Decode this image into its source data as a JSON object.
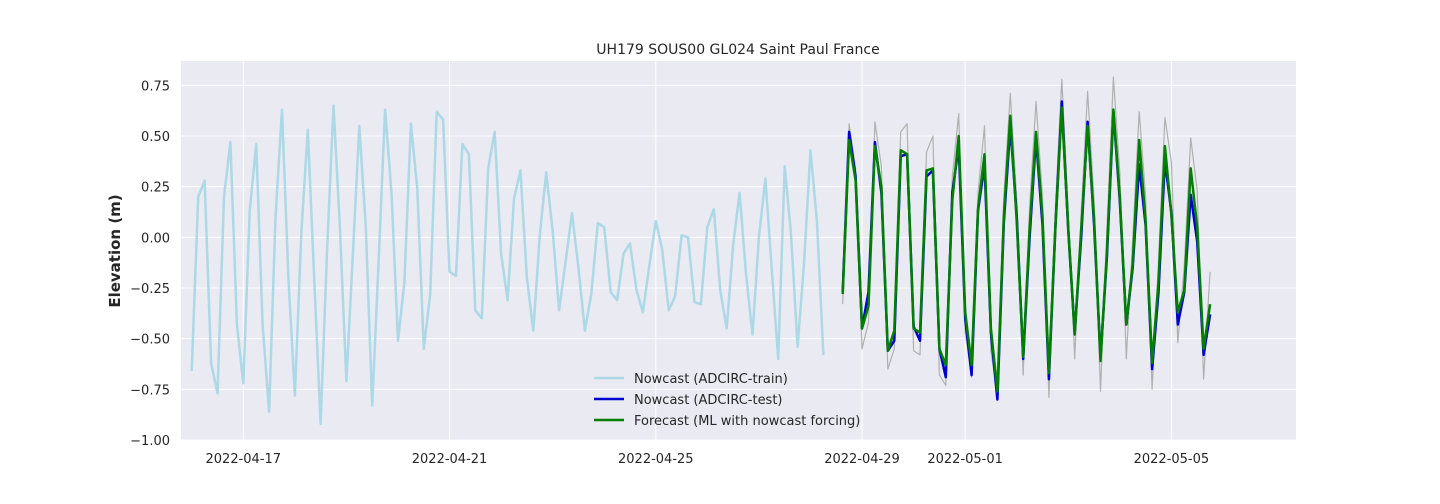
{
  "chart_data": {
    "type": "line",
    "title": "UH179 SOUS00 GL024 Saint Paul France",
    "xlabel": "",
    "ylabel": "Elevation (m)",
    "ylim": [
      -1.0,
      0.87
    ],
    "xlim": [
      "2022-04-15 19:00",
      "2022-05-07 10:00"
    ],
    "grid": true,
    "background": "#eaeaf2",
    "legend_position": "lower-center",
    "x_tick_labels": [
      "2022-04-17",
      "2022-04-21",
      "2022-04-25",
      "2022-04-29",
      "2022-05-01",
      "2022-05-05"
    ],
    "y_tick_labels": [
      "−1.00",
      "−0.75",
      "−0.50",
      "−0.25",
      "0.00",
      "0.25",
      "0.50",
      "0.75"
    ],
    "y_tick_values": [
      -1.0,
      -0.75,
      -0.5,
      -0.25,
      0.0,
      0.25,
      0.5,
      0.75
    ],
    "series": [
      {
        "name": "Nowcast (ADCIRC-train)",
        "color": "#add8e6",
        "start": "2022-04-16 00:00",
        "step_hours": 3,
        "values": [
          -0.66,
          0.2,
          0.28,
          -0.62,
          -0.77,
          0.2,
          0.47,
          -0.43,
          -0.72,
          0.13,
          0.46,
          -0.43,
          -0.86,
          0.1,
          0.63,
          -0.2,
          -0.78,
          0.02,
          0.53,
          -0.2,
          -0.92,
          -0.06,
          0.65,
          0.04,
          -0.71,
          -0.08,
          0.55,
          0.05,
          -0.83,
          -0.12,
          0.63,
          0.22,
          -0.51,
          -0.22,
          0.56,
          0.24,
          -0.55,
          -0.28,
          0.62,
          0.58,
          -0.17,
          -0.19,
          0.46,
          0.41,
          -0.36,
          -0.4,
          0.34,
          0.52,
          -0.08,
          -0.31,
          0.19,
          0.33,
          -0.2,
          -0.46,
          0.01,
          0.32,
          0.03,
          -0.36,
          -0.12,
          0.12,
          -0.15,
          -0.46,
          -0.28,
          0.07,
          0.05,
          -0.27,
          -0.31,
          -0.08,
          -0.03,
          -0.26,
          -0.37,
          -0.14,
          0.08,
          -0.06,
          -0.36,
          -0.29,
          0.01,
          0.0,
          -0.32,
          -0.33,
          0.05,
          0.14,
          -0.26,
          -0.45,
          -0.04,
          0.22,
          -0.18,
          -0.48,
          0.0,
          0.29,
          -0.16,
          -0.6,
          0.35,
          0.01,
          -0.54,
          -0.13,
          0.43,
          0.08,
          -0.58
        ]
      },
      {
        "name": "Nowcast (ADCIRC-test)",
        "color": "#0000cd",
        "start": "2022-04-28 15:00",
        "step_hours": 3,
        "values": [
          -0.27,
          0.52,
          0.3,
          -0.45,
          -0.27,
          0.47,
          0.22,
          -0.56,
          -0.51,
          0.4,
          0.41,
          -0.44,
          -0.51,
          0.3,
          0.33,
          -0.55,
          -0.69,
          0.22,
          0.45,
          -0.4,
          -0.68,
          0.13,
          0.36,
          -0.47,
          -0.8,
          0.07,
          0.55,
          0.11,
          -0.6,
          0.0,
          0.49,
          0.06,
          -0.7,
          0.05,
          0.67,
          0.03,
          -0.47,
          0.0,
          0.57,
          0.06,
          -0.59,
          -0.1,
          0.62,
          0.18,
          -0.43,
          -0.15,
          0.36,
          0.06,
          -0.65,
          -0.27,
          0.38,
          0.12,
          -0.43,
          -0.27,
          0.21,
          -0.02,
          -0.58,
          -0.38
        ]
      },
      {
        "name": "Forecast (ML with nowcast forcing)",
        "color": "#008000",
        "start": "2022-04-28 15:00",
        "step_hours": 3,
        "values": [
          -0.28,
          0.48,
          0.28,
          -0.45,
          -0.34,
          0.45,
          0.25,
          -0.56,
          -0.46,
          0.43,
          0.41,
          -0.45,
          -0.47,
          0.33,
          0.34,
          -0.55,
          -0.63,
          0.18,
          0.5,
          -0.37,
          -0.63,
          0.14,
          0.41,
          -0.45,
          -0.76,
          0.1,
          0.6,
          0.08,
          -0.59,
          0.04,
          0.52,
          0.1,
          -0.67,
          0.05,
          0.64,
          0.04,
          -0.48,
          0.04,
          0.55,
          0.09,
          -0.61,
          -0.07,
          0.63,
          0.2,
          -0.43,
          -0.13,
          0.48,
          0.08,
          -0.62,
          -0.22,
          0.45,
          0.11,
          -0.37,
          -0.26,
          0.34,
          0.05,
          -0.55,
          -0.33
        ]
      },
      {
        "name": "",
        "color": "#b0b0b0",
        "start": "2022-04-28 15:00",
        "step_hours": 3,
        "values": [
          -0.33,
          0.56,
          0.34,
          -0.55,
          -0.42,
          0.57,
          0.35,
          -0.65,
          -0.55,
          0.52,
          0.56,
          -0.56,
          -0.58,
          0.42,
          0.5,
          -0.68,
          -0.73,
          0.3,
          0.61,
          -0.47,
          -0.69,
          0.22,
          0.55,
          -0.56,
          -0.78,
          0.2,
          0.71,
          0.19,
          -0.68,
          0.15,
          0.67,
          0.2,
          -0.79,
          0.15,
          0.78,
          0.13,
          -0.6,
          0.12,
          0.72,
          0.18,
          -0.76,
          0.04,
          0.79,
          0.32,
          -0.6,
          -0.01,
          0.62,
          0.2,
          -0.75,
          -0.12,
          0.59,
          0.37,
          -0.52,
          -0.14,
          0.49,
          0.23,
          -0.7,
          -0.17
        ]
      }
    ],
    "legend": [
      {
        "label": "Nowcast (ADCIRC-train)",
        "color": "#add8e6"
      },
      {
        "label": "Nowcast (ADCIRC-test)",
        "color": "#0000cd"
      },
      {
        "label": "Forecast (ML with nowcast forcing)",
        "color": "#008000"
      }
    ]
  }
}
